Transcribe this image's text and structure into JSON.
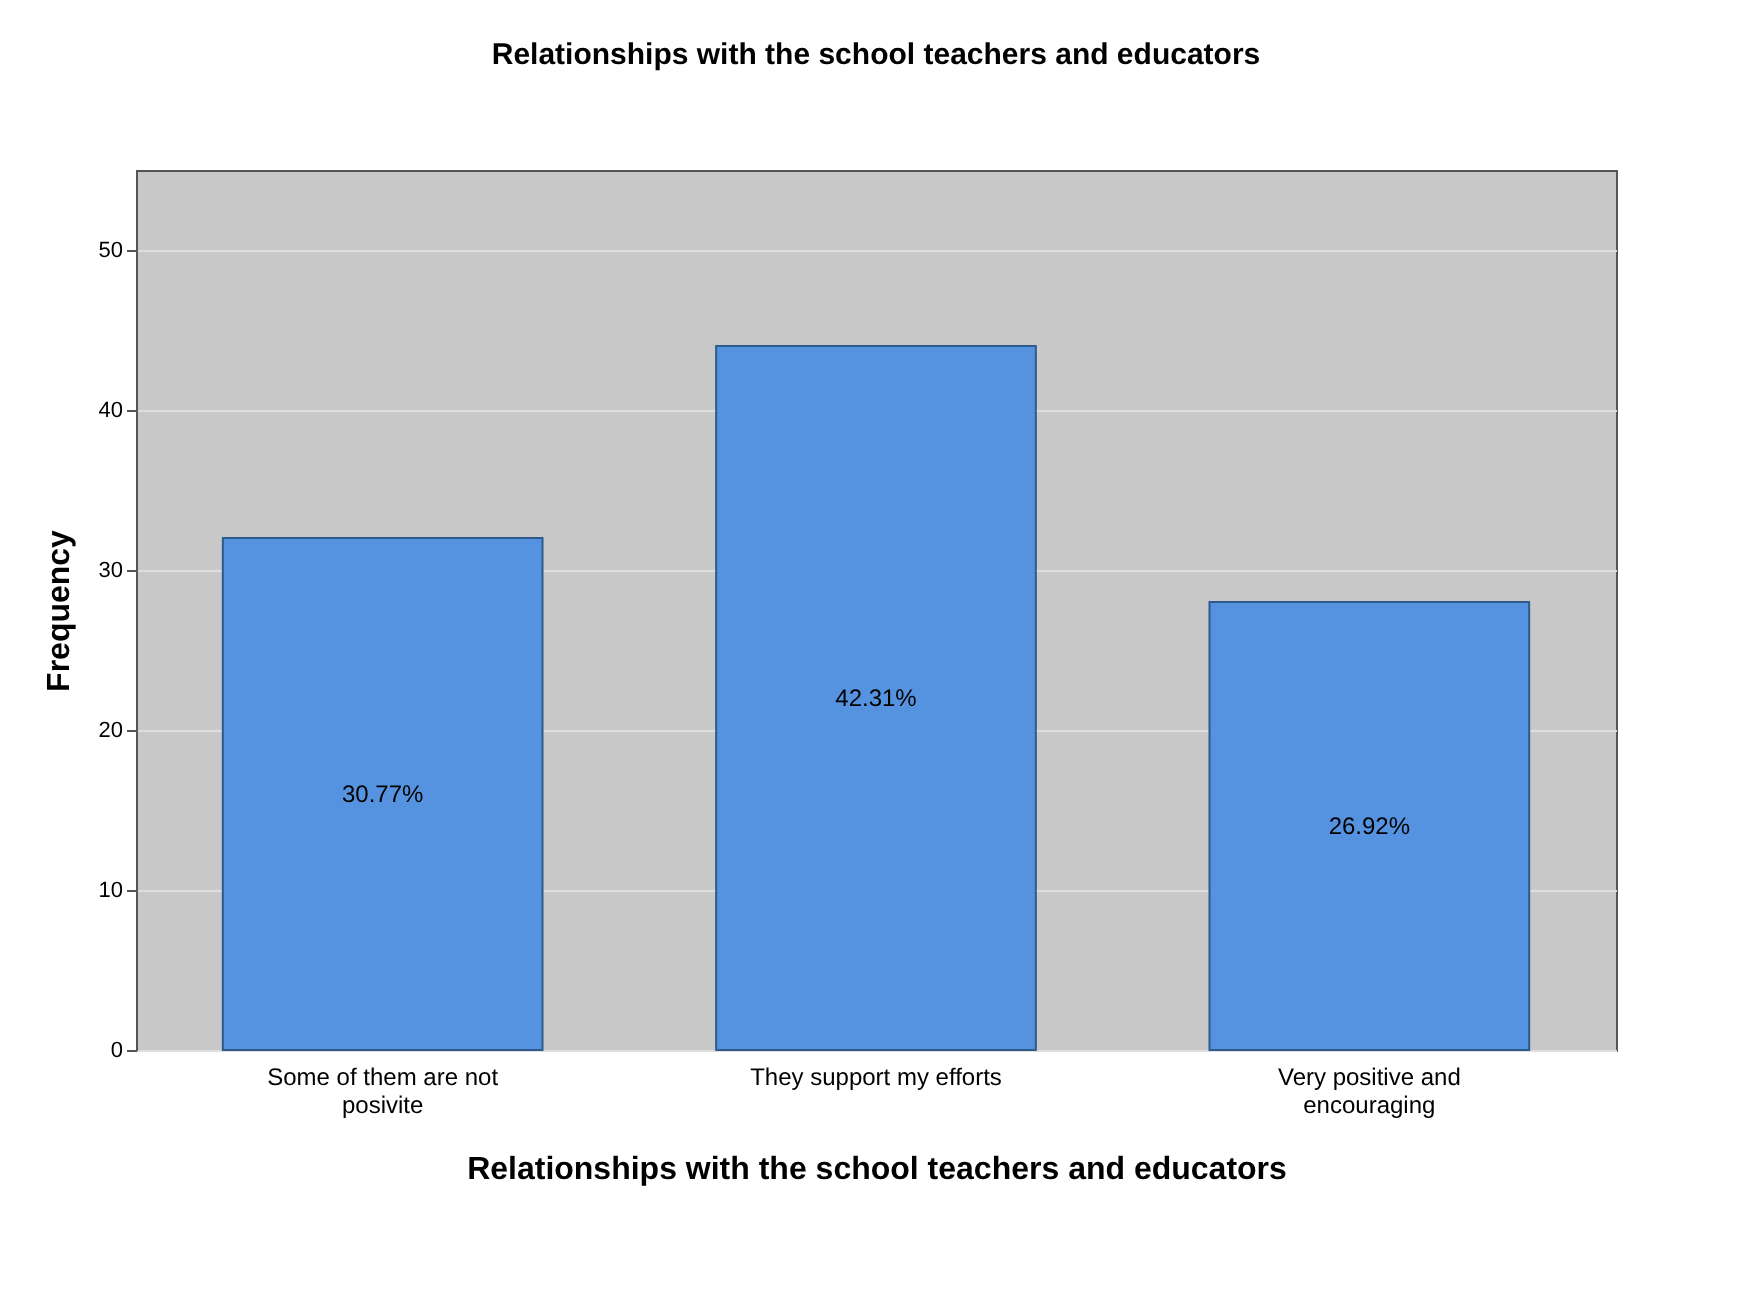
{
  "chart_data": {
    "type": "bar",
    "title": "Relationships with the school teachers and educators",
    "xlabel": "Relationships with the school teachers and educators",
    "ylabel": "Frequency",
    "categories": [
      "Some of them are not posivite",
      "They support my efforts",
      "Very positive and encouraging"
    ],
    "values": [
      32,
      44,
      28
    ],
    "color": "#5593e0",
    "annotations": [
      "30.77%",
      "42.31%",
      "26.92%"
    ],
    "ylim": [
      0,
      55
    ],
    "yticks": [
      0,
      10,
      20,
      30,
      40,
      50
    ],
    "grid": "y"
  }
}
